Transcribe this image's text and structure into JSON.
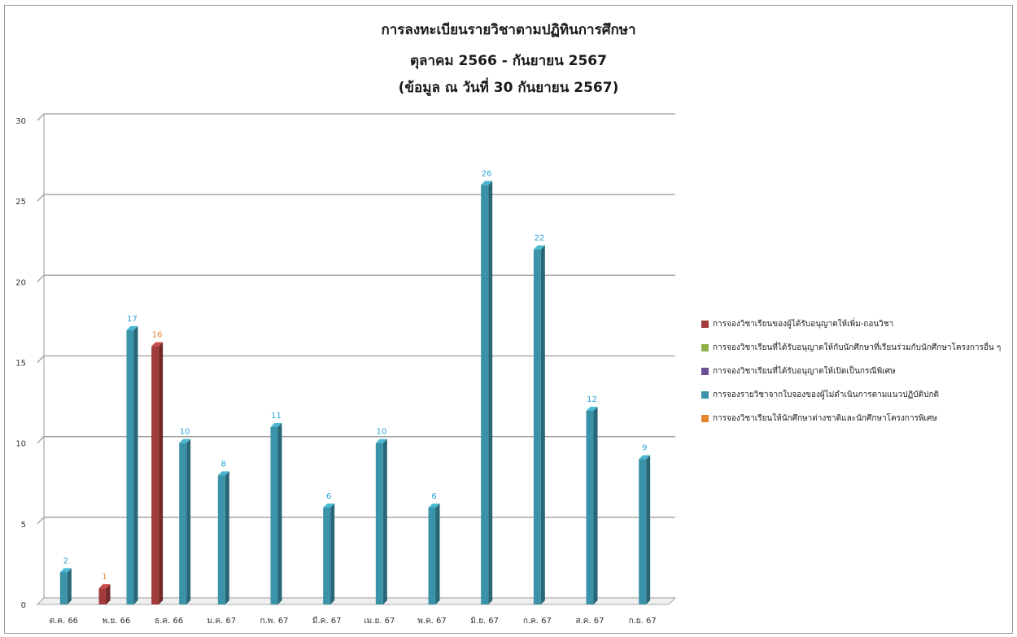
{
  "chart_data": {
    "type": "bar",
    "title_lines": [
      "การลงทะเบียนรายวิชาตามปฏิทินการศึกษา",
      "ตุลาคม 2566 - กันยายน 2567",
      "(ข้อมูล ณ วันที่ 30 กันยายน 2567)"
    ],
    "categories": [
      "ต.ค. 66",
      "พ.ย. 66",
      "ธ.ค. 66",
      "ม.ค. 67",
      "ก.พ. 67",
      "มี.ค. 67",
      "เม.ย. 67",
      "พ.ค. 67",
      "มิ.ย. 67",
      "ก.ค. 67",
      "ส.ค. 67",
      "ก.ย. 67"
    ],
    "ylim": [
      0,
      30
    ],
    "yticks": [
      0,
      5,
      10,
      15,
      20,
      25,
      30
    ],
    "grid": true,
    "legend_position": "right",
    "series": [
      {
        "name": "การจองวิชาเรียนของผู้ได้รับอนุญาตให้เพิ่ม-ถอนวิชา",
        "color": "#a23b3b",
        "label_color": "#e8862e",
        "values": [
          null,
          1,
          16,
          null,
          null,
          null,
          null,
          null,
          null,
          null,
          null,
          null
        ]
      },
      {
        "name": "การจองวิชาเรียนที่ได้รับอนุญาตให้กับนักศึกษาที่เรียนร่วมกับนักศึกษาโครงการอื่น ๆ",
        "color": "#8db049",
        "label_color": "#8db049",
        "values": [
          null,
          null,
          null,
          null,
          null,
          null,
          null,
          null,
          null,
          null,
          null,
          null
        ]
      },
      {
        "name": "การจองวิชาเรียนที่ได้รับอนุญาตให้เปิดเป็นกรณีพิเศษ",
        "color": "#6b4f94",
        "label_color": "#6b4f94",
        "values": [
          null,
          null,
          null,
          null,
          null,
          null,
          null,
          null,
          null,
          null,
          null,
          null
        ]
      },
      {
        "name": "การจองรายวิชาจากใบจองของผู้ไม่ดำเนินการตามแนวปฏิบัติปกติ",
        "color": "#3a93a8",
        "label_color": "#2aa3d6",
        "values": [
          2,
          17,
          10,
          8,
          11,
          6,
          10,
          6,
          26,
          22,
          12,
          9
        ]
      },
      {
        "name": "การจองวิชาเรียนให้นักศึกษาต่างชาติและนักศึกษาโครงการพิเศษ",
        "color": "#e8862e",
        "label_color": "#e8862e",
        "values": [
          null,
          null,
          null,
          null,
          null,
          null,
          null,
          null,
          null,
          null,
          null,
          null
        ]
      }
    ]
  }
}
